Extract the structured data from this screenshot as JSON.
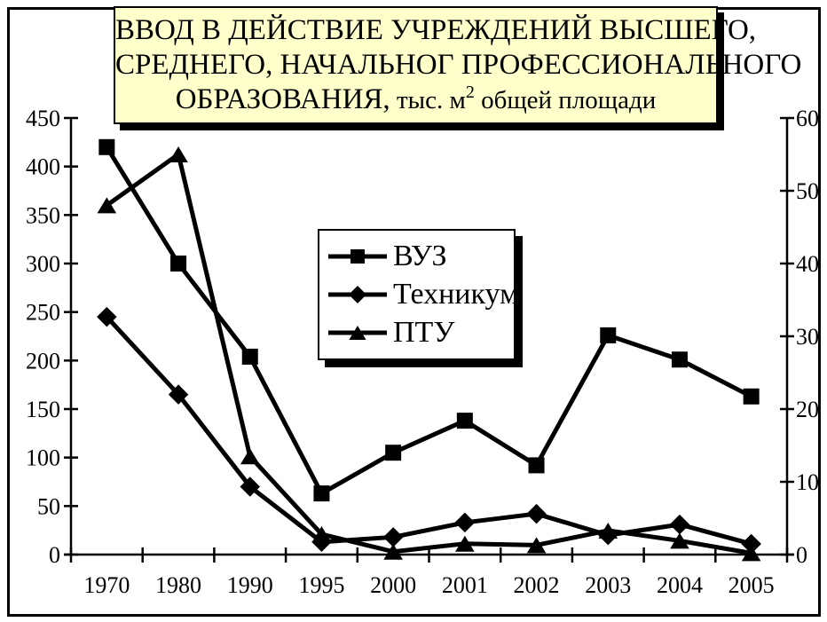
{
  "title": {
    "line1": "ВВОД В ДЕЙСТВИЕ УЧРЕЖДЕНИЙ ВЫСШЕГО,",
    "line2": "СРЕДНЕГО, НАЧАЛЬНОГ ПРОФЕССИОНАЛЬНОГО",
    "line3a": "ОБРАЗОВАНИЯ,",
    "line3b": " тыс. м",
    "line3_sup": "2",
    "line3c": " общей площади"
  },
  "colors": {
    "title_box_bg": "#FFFFCC",
    "line_color": "#000000",
    "legend_bg": "#FFFFFF",
    "text_color": "#000000"
  },
  "chart_data": {
    "type": "line",
    "title": "ВВОД В ДЕЙСТВИЕ УЧРЕЖДЕНИЙ ВЫСШЕГО, СРЕДНЕГО, НАЧАЛЬНОГ ПРОФЕССИОНАЛЬНОГО ОБРАЗОВАНИЯ, тыс. м2 общей площади",
    "categories": [
      "1970",
      "1980",
      "1990",
      "1995",
      "2000",
      "2001",
      "2002",
      "2003",
      "2004",
      "2005"
    ],
    "series": [
      {
        "name": "ВУЗ",
        "marker": "square",
        "axis": "left",
        "values": [
          420,
          300,
          204,
          63,
          105,
          138,
          92,
          226,
          201,
          163
        ]
      },
      {
        "name": "Техникум",
        "marker": "diamond",
        "axis": "left",
        "values": [
          245,
          165,
          70,
          13,
          18,
          33,
          42,
          20,
          31,
          11
        ]
      },
      {
        "name": "ПТУ",
        "marker": "triangle",
        "axis": "right",
        "values": [
          48,
          55,
          13.5,
          2.8,
          0.4,
          1.5,
          1.3,
          3.3,
          1.9,
          0.2
        ]
      }
    ],
    "left_axis": {
      "min": 0,
      "max": 450,
      "step": 50,
      "ticks": [
        "0",
        "50",
        "100",
        "150",
        "200",
        "250",
        "300",
        "350",
        "400",
        "450"
      ]
    },
    "right_axis": {
      "min": 0,
      "max": 60,
      "step": 10,
      "ticks": [
        "0",
        "10",
        "20",
        "30",
        "40",
        "50",
        "60"
      ]
    },
    "grid": false,
    "legend_position": "center"
  }
}
